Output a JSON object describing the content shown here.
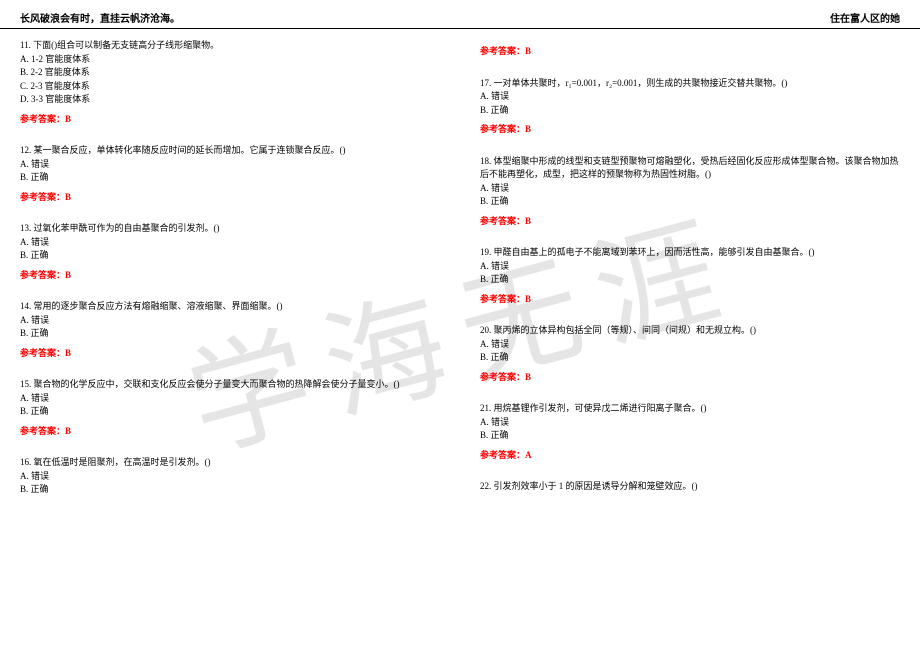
{
  "header": {
    "left": "长风破浪会有时，直挂云帆济沧海。",
    "right": "住在富人区的她"
  },
  "watermark": "学海无涯",
  "answer_label_prefix": "参考答案：",
  "left_column": [
    {
      "q": "11. 下面()组合可以制备无支链高分子线形缩聚物。",
      "opts": [
        "A. 1-2 官能度体系",
        "B. 2-2 官能度体系",
        "C. 2-3 官能度体系",
        "D. 3-3 官能度体系"
      ],
      "ans": "B"
    },
    {
      "q": "12. 某一聚合反应，单体转化率随反应时间的延长而增加。它属于连锁聚合反应。()",
      "opts": [
        "A. 错误",
        "B. 正确"
      ],
      "ans": "B"
    },
    {
      "q": "13. 过氧化苯甲酰可作为的自由基聚合的引发剂。()",
      "opts": [
        "A. 错误",
        "B. 正确"
      ],
      "ans": "B"
    },
    {
      "q": "14. 常用的逐步聚合反应方法有熔融缩聚、溶液缩聚、界面缩聚。()",
      "opts": [
        "A. 错误",
        "B. 正确"
      ],
      "ans": "B"
    },
    {
      "q": "15. 聚合物的化学反应中，交联和支化反应会使分子量变大而聚合物的热降解会使分子量变小。()",
      "opts": [
        "A. 错误",
        "B. 正确"
      ],
      "ans": "B"
    },
    {
      "q": "16. 氧在低温时是阻聚剂，在高温时是引发剂。()",
      "opts": [
        "A. 错误",
        "B. 正确"
      ],
      "ans": ""
    }
  ],
  "right_column": [
    {
      "q": "",
      "opts": [],
      "ans": "B"
    },
    {
      "q": "17. 一对单体共聚时，r₁=0.001，r₂=0.001，则生成的共聚物接近交替共聚物。()",
      "opts": [
        "A. 错误",
        "B. 正确"
      ],
      "ans": "B"
    },
    {
      "q": "18. 体型缩聚中形成的线型和支链型预聚物可熔融塑化，受热后经固化反应形成体型聚合物。该聚合物加热后不能再塑化，成型，把这样的预聚物称为热固性树脂。()",
      "opts": [
        "A. 错误",
        "B. 正确"
      ],
      "ans": "B"
    },
    {
      "q": "19. 甲醛自由基上的孤电子不能离域到苯环上，因而活性高，能够引发自由基聚合。()",
      "opts": [
        "A. 错误",
        "B. 正确"
      ],
      "ans": "B"
    },
    {
      "q": "20. 聚丙烯的立体异构包括全同（等规）、间同（间规）和无规立构。()",
      "opts": [
        "A. 错误",
        "B. 正确"
      ],
      "ans": "B"
    },
    {
      "q": "21. 用烷基锂作引发剂，可使异戊二烯进行阳离子聚合。()",
      "opts": [
        "A. 错误",
        "B. 正确"
      ],
      "ans": "A"
    },
    {
      "q": "22. 引发剂效率小于 1 的原因是诱导分解和笼壁效应。()",
      "opts": [],
      "ans": ""
    }
  ]
}
